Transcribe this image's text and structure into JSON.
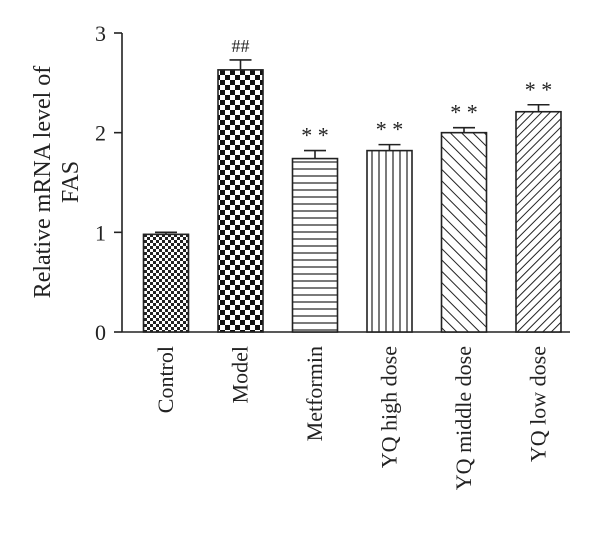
{
  "chart_data": {
    "type": "bar",
    "ylabel_lines": [
      "Relative mRNA level of",
      "FAS"
    ],
    "ylim": [
      0,
      3
    ],
    "yticks": [
      "0",
      "1",
      "2",
      "3"
    ],
    "categories": [
      "Control",
      "Model",
      "Metformin",
      "YQ high dose",
      "YQ middle dose",
      "YQ low dose"
    ],
    "values": [
      0.98,
      2.63,
      1.74,
      1.82,
      2.0,
      2.21
    ],
    "errors": [
      0.02,
      0.1,
      0.08,
      0.06,
      0.05,
      0.07
    ],
    "annotations": [
      "",
      "##",
      "* *",
      "* *",
      "* *",
      "* *"
    ],
    "patterns": [
      "fine-checker",
      "checker",
      "horizontal-lines",
      "vertical-lines",
      "diagonal-lines",
      "dense-diagonal-lines"
    ]
  }
}
